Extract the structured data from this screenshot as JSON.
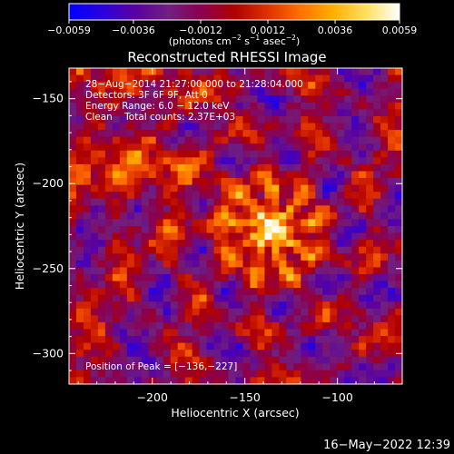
{
  "chart_data": {
    "type": "heatmap",
    "title": "Reconstructed RHESSI Image",
    "xlabel": "Heliocentric X (arcsec)",
    "ylabel": "Heliocentric Y (arcsec)",
    "xlim": [
      -245,
      -65
    ],
    "ylim": [
      -318,
      -132
    ],
    "x_ticks": [
      {
        "value": -200,
        "label": "−200"
      },
      {
        "value": -150,
        "label": "−150"
      },
      {
        "value": -100,
        "label": "−100"
      }
    ],
    "y_ticks": [
      {
        "value": -150,
        "label": "−150"
      },
      {
        "value": -200,
        "label": "−200"
      },
      {
        "value": -250,
        "label": "−250"
      },
      {
        "value": -300,
        "label": "−300"
      }
    ],
    "colorbar": {
      "range": [
        -0.0059,
        0.0059
      ],
      "ticks": [
        {
          "value": -0.0059,
          "label": "−0.0059"
        },
        {
          "value": -0.0036,
          "label": "−0.0036"
        },
        {
          "value": -0.0012,
          "label": "−0.0012"
        },
        {
          "value": 0.0012,
          "label": "0.0012"
        },
        {
          "value": 0.0036,
          "label": "0.0036"
        },
        {
          "value": 0.0059,
          "label": "0.0059"
        }
      ],
      "units_main": "(photons cm",
      "units_exp1": "−2",
      "units_mid": " s",
      "units_exp2": "−1",
      "units_end": " asec",
      "units_exp3": "−2",
      "units_close": ")",
      "colormap": [
        "#0000ff",
        "#2a00e0",
        "#5a00a0",
        "#702080",
        "#8a0050",
        "#b00000",
        "#e03000",
        "#ff7000",
        "#ffb000",
        "#ffe060",
        "#ffffff"
      ]
    },
    "peak": {
      "x": -136,
      "y": -227,
      "value": 0.0059
    },
    "annotations": [
      "28−Aug−2014 21:27:00.000 to 21:28:04.000",
      "Detectors: 3F 6F 9F, Att 0",
      "Energy Range: 6.0 − 12.0 keV",
      "Clean    Total counts: 2.37E+03"
    ],
    "peak_label": "Position of Peak = [−136,−227]"
  },
  "footer": {
    "timestamp": "16−May−2022 12:39"
  }
}
